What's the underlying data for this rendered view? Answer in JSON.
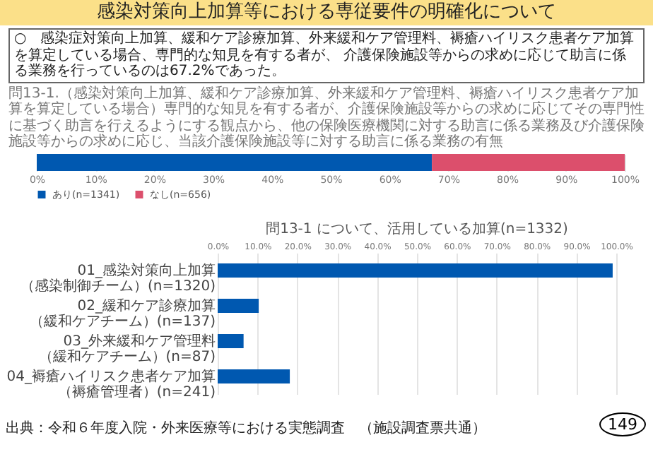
{
  "chart_data": [
    {
      "type": "bar",
      "orientation": "horizontal",
      "stacked": true,
      "title": "問13-1.（感染対策向上加算、緩和ケア診療加算、外来緩和ケア管理料、褥瘡ハイリスク患者ケア加算を算定している場合）専門的な知見を有する者が、介護保険施設等からの求めに応じてその専門性に基づく助言を行えるようにする観点から、他の保険医療機関に対する助言に係る業務及び介護保険施設等からの求めに応じ、当該介護保険施設等に対する助言に係る業務の有無",
      "categories": [
        null
      ],
      "series": [
        {
          "name": "あり(n=1341)",
          "color": "#0058b0",
          "values": [
            67.2
          ]
        },
        {
          "name": "なし(n=656)",
          "color": "#dc4f6c",
          "values": [
            32.8
          ]
        }
      ],
      "xlim": [
        0,
        100
      ],
      "xticks": [
        {
          "value": 0,
          "label": "0%"
        },
        {
          "value": 10,
          "label": "10%"
        },
        {
          "value": 20,
          "label": "20%"
        },
        {
          "value": 30,
          "label": "30%"
        },
        {
          "value": 40,
          "label": "40%"
        },
        {
          "value": 50,
          "label": "50%"
        },
        {
          "value": 60,
          "label": "60%"
        },
        {
          "value": 70,
          "label": "70%"
        },
        {
          "value": 80,
          "label": "80%"
        },
        {
          "value": 90,
          "label": "90%"
        },
        {
          "value": 100,
          "label": "100%"
        }
      ],
      "grid": "x",
      "legend": "bottom",
      "annotations": [
        "感染対策向上加算等における専従要件の明確化について",
        "○　感染症対策向上加算、緩和ケア診療加算、外来緩和ケア管理料、褥瘡ハイリスク患者ケア加算を算定している場合、専門的な知見を有する者が、 介護保険施設等からの求めに応じて助言に係る業務を行っているのは67.2%であった。"
      ]
    },
    {
      "type": "bar",
      "orientation": "horizontal",
      "title": "問13-1 について、活用している加算(n=1332)",
      "categories": [
        "01_感染対策向上加算（感染制御チーム）(n=1320)",
        "02_緩和ケア診療加算（緩和ケアチーム）(n=137)",
        "03_外来緩和ケア管理料（緩和ケアチーム）(n=87)",
        "04_褥瘡ハイリスク患者ケア加算（褥瘡管理者）(n=241)"
      ],
      "series": [
        {
          "color": "#0058b0",
          "values": [
            99.1,
            10.3,
            6.5,
            18.1
          ]
        }
      ],
      "xlim": [
        0,
        100
      ],
      "xticks": [
        {
          "value": 0,
          "label": "0.0%"
        },
        {
          "value": 10,
          "label": "10.0%"
        },
        {
          "value": 20,
          "label": "20.0%"
        },
        {
          "value": 30,
          "label": "30.0%"
        },
        {
          "value": 40,
          "label": "40.0%"
        },
        {
          "value": 50,
          "label": "50.0%"
        },
        {
          "value": 60,
          "label": "60.0%"
        },
        {
          "value": 70,
          "label": "70.0%"
        },
        {
          "value": 80,
          "label": "80.0%"
        },
        {
          "value": 90,
          "label": "90.0%"
        },
        {
          "value": 100,
          "label": "100.0%"
        }
      ],
      "grid": "x",
      "annotations": [
        "出典：令和６年度入院・外来医療等における実態調査　（施設調査票共通）",
        "149"
      ]
    }
  ]
}
